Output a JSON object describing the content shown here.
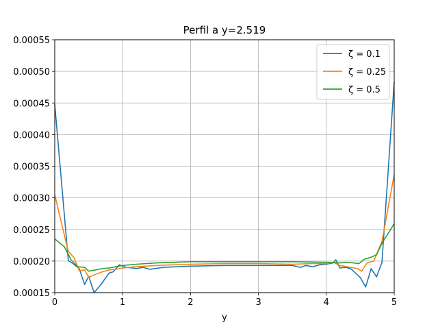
{
  "chart_data": {
    "type": "line",
    "title": "Perfil a y=2.519",
    "xlabel": "y",
    "ylabel": "",
    "xlim": [
      0,
      5
    ],
    "ylim": [
      0.00015,
      0.00055
    ],
    "xticks": [
      "0",
      "1",
      "2",
      "3",
      "4",
      "5"
    ],
    "yticks": [
      "0.00015",
      "0.00020",
      "0.00025",
      "0.00030",
      "0.00035",
      "0.00040",
      "0.00045",
      "0.00050",
      "0.00055"
    ],
    "grid": true,
    "legend_position": "top-right",
    "legend_entries": [
      "ζ = 0.1",
      "ζ = 0.25",
      "ζ = 0.5"
    ],
    "series": [
      {
        "name": "ζ = 0.1",
        "color": "#1f77b4",
        "x": [
          0,
          0.2,
          0.28,
          0.36,
          0.44,
          0.5,
          0.58,
          0.68,
          0.8,
          0.86,
          0.95,
          1.05,
          1.15,
          1.2,
          1.3,
          1.4,
          1.6,
          2.0,
          2.5,
          3.0,
          3.5,
          3.62,
          3.7,
          3.8,
          3.9,
          4.0,
          4.1,
          4.14,
          4.2,
          4.28,
          4.36,
          4.5,
          4.58,
          4.66,
          4.74,
          4.82,
          5.0
        ],
        "y": [
          0.000448,
          0.000201,
          0.000195,
          0.000188,
          0.000163,
          0.000176,
          0.00015,
          0.000163,
          0.000181,
          0.000183,
          0.000194,
          0.00019,
          0.000189,
          0.000188,
          0.00019,
          0.000187,
          0.00019,
          0.000192,
          0.000193,
          0.000193,
          0.000193,
          0.00019,
          0.000193,
          0.000191,
          0.000194,
          0.000195,
          0.000197,
          0.000202,
          0.000189,
          0.00019,
          0.000188,
          0.000174,
          0.000159,
          0.000188,
          0.000175,
          0.000198,
          0.000483
        ]
      },
      {
        "name": "ζ = 0.25",
        "color": "#ff7f0e",
        "x": [
          0,
          0.2,
          0.28,
          0.36,
          0.44,
          0.5,
          0.6,
          0.7,
          0.8,
          0.9,
          1.0,
          1.2,
          1.5,
          2.0,
          2.5,
          3.0,
          3.5,
          3.8,
          4.0,
          4.1,
          4.2,
          4.3,
          4.36,
          4.46,
          4.52,
          4.6,
          4.7,
          4.82,
          5.0
        ],
        "y": [
          0.000305,
          0.000215,
          0.000206,
          0.000185,
          0.000186,
          0.000174,
          0.000179,
          0.000183,
          0.000186,
          0.000187,
          0.000189,
          0.000191,
          0.000193,
          0.000195,
          0.000196,
          0.000196,
          0.000195,
          0.000196,
          0.000196,
          0.000198,
          0.000193,
          0.000191,
          0.00019,
          0.000188,
          0.000184,
          0.000197,
          0.0002,
          0.000231,
          0.000337
        ]
      },
      {
        "name": "ζ = 0.5",
        "color": "#2ca02c",
        "x": [
          0,
          0.14,
          0.24,
          0.34,
          0.44,
          0.5,
          0.6,
          0.7,
          0.8,
          0.9,
          1.0,
          1.2,
          1.5,
          2.0,
          2.5,
          3.0,
          3.5,
          4.0,
          4.2,
          4.3,
          4.4,
          4.48,
          4.56,
          4.66,
          4.74,
          4.82,
          5.0
        ],
        "y": [
          0.000235,
          0.000223,
          0.000202,
          0.000191,
          0.00019,
          0.000184,
          0.000186,
          0.000188,
          0.000189,
          0.000191,
          0.000193,
          0.000195,
          0.000197,
          0.000199,
          0.000199,
          0.000199,
          0.000199,
          0.000198,
          0.000197,
          0.000198,
          0.000197,
          0.000196,
          0.000203,
          0.000206,
          0.00021,
          0.000228,
          0.000259
        ]
      }
    ]
  }
}
